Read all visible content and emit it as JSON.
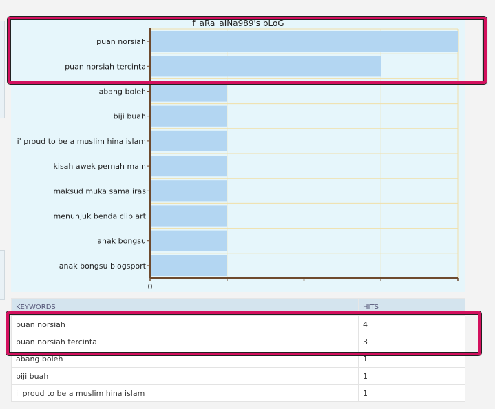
{
  "chart_data": {
    "type": "bar",
    "orientation": "horizontal",
    "title": "f_aRa_aINa989's bLoG",
    "categories": [
      "puan norsiah",
      "puan norsiah tercinta",
      "abang boleh",
      "biji buah",
      "i' proud to be a muslim hina islam",
      "kisah awek pernah main",
      "maksud muka sama iras",
      "menunjuk benda clip art",
      "anak bongsu",
      "anak bongsu blogsport"
    ],
    "values": [
      4,
      3,
      1,
      1,
      1,
      1,
      1,
      1,
      1,
      1
    ],
    "xlim": [
      0,
      4
    ],
    "x_tick_labels": [
      "0"
    ],
    "grid": true,
    "colors": {
      "bar": "#b3d6f2",
      "grid": "#f0dfa8",
      "axis": "#6e4a2e",
      "background": "#e6f6fb"
    }
  },
  "table": {
    "headers": [
      "KEYWORDS",
      "HITS"
    ],
    "rows": [
      {
        "keyword": "puan norsiah",
        "hits": "4"
      },
      {
        "keyword": "puan norsiah tercinta",
        "hits": "3"
      },
      {
        "keyword": "abang boleh",
        "hits": "1"
      },
      {
        "keyword": "biji buah",
        "hits": "1"
      },
      {
        "keyword": "i' proud to be a muslim hina islam",
        "hits": "1"
      }
    ]
  },
  "highlight_color": "#d3105e"
}
